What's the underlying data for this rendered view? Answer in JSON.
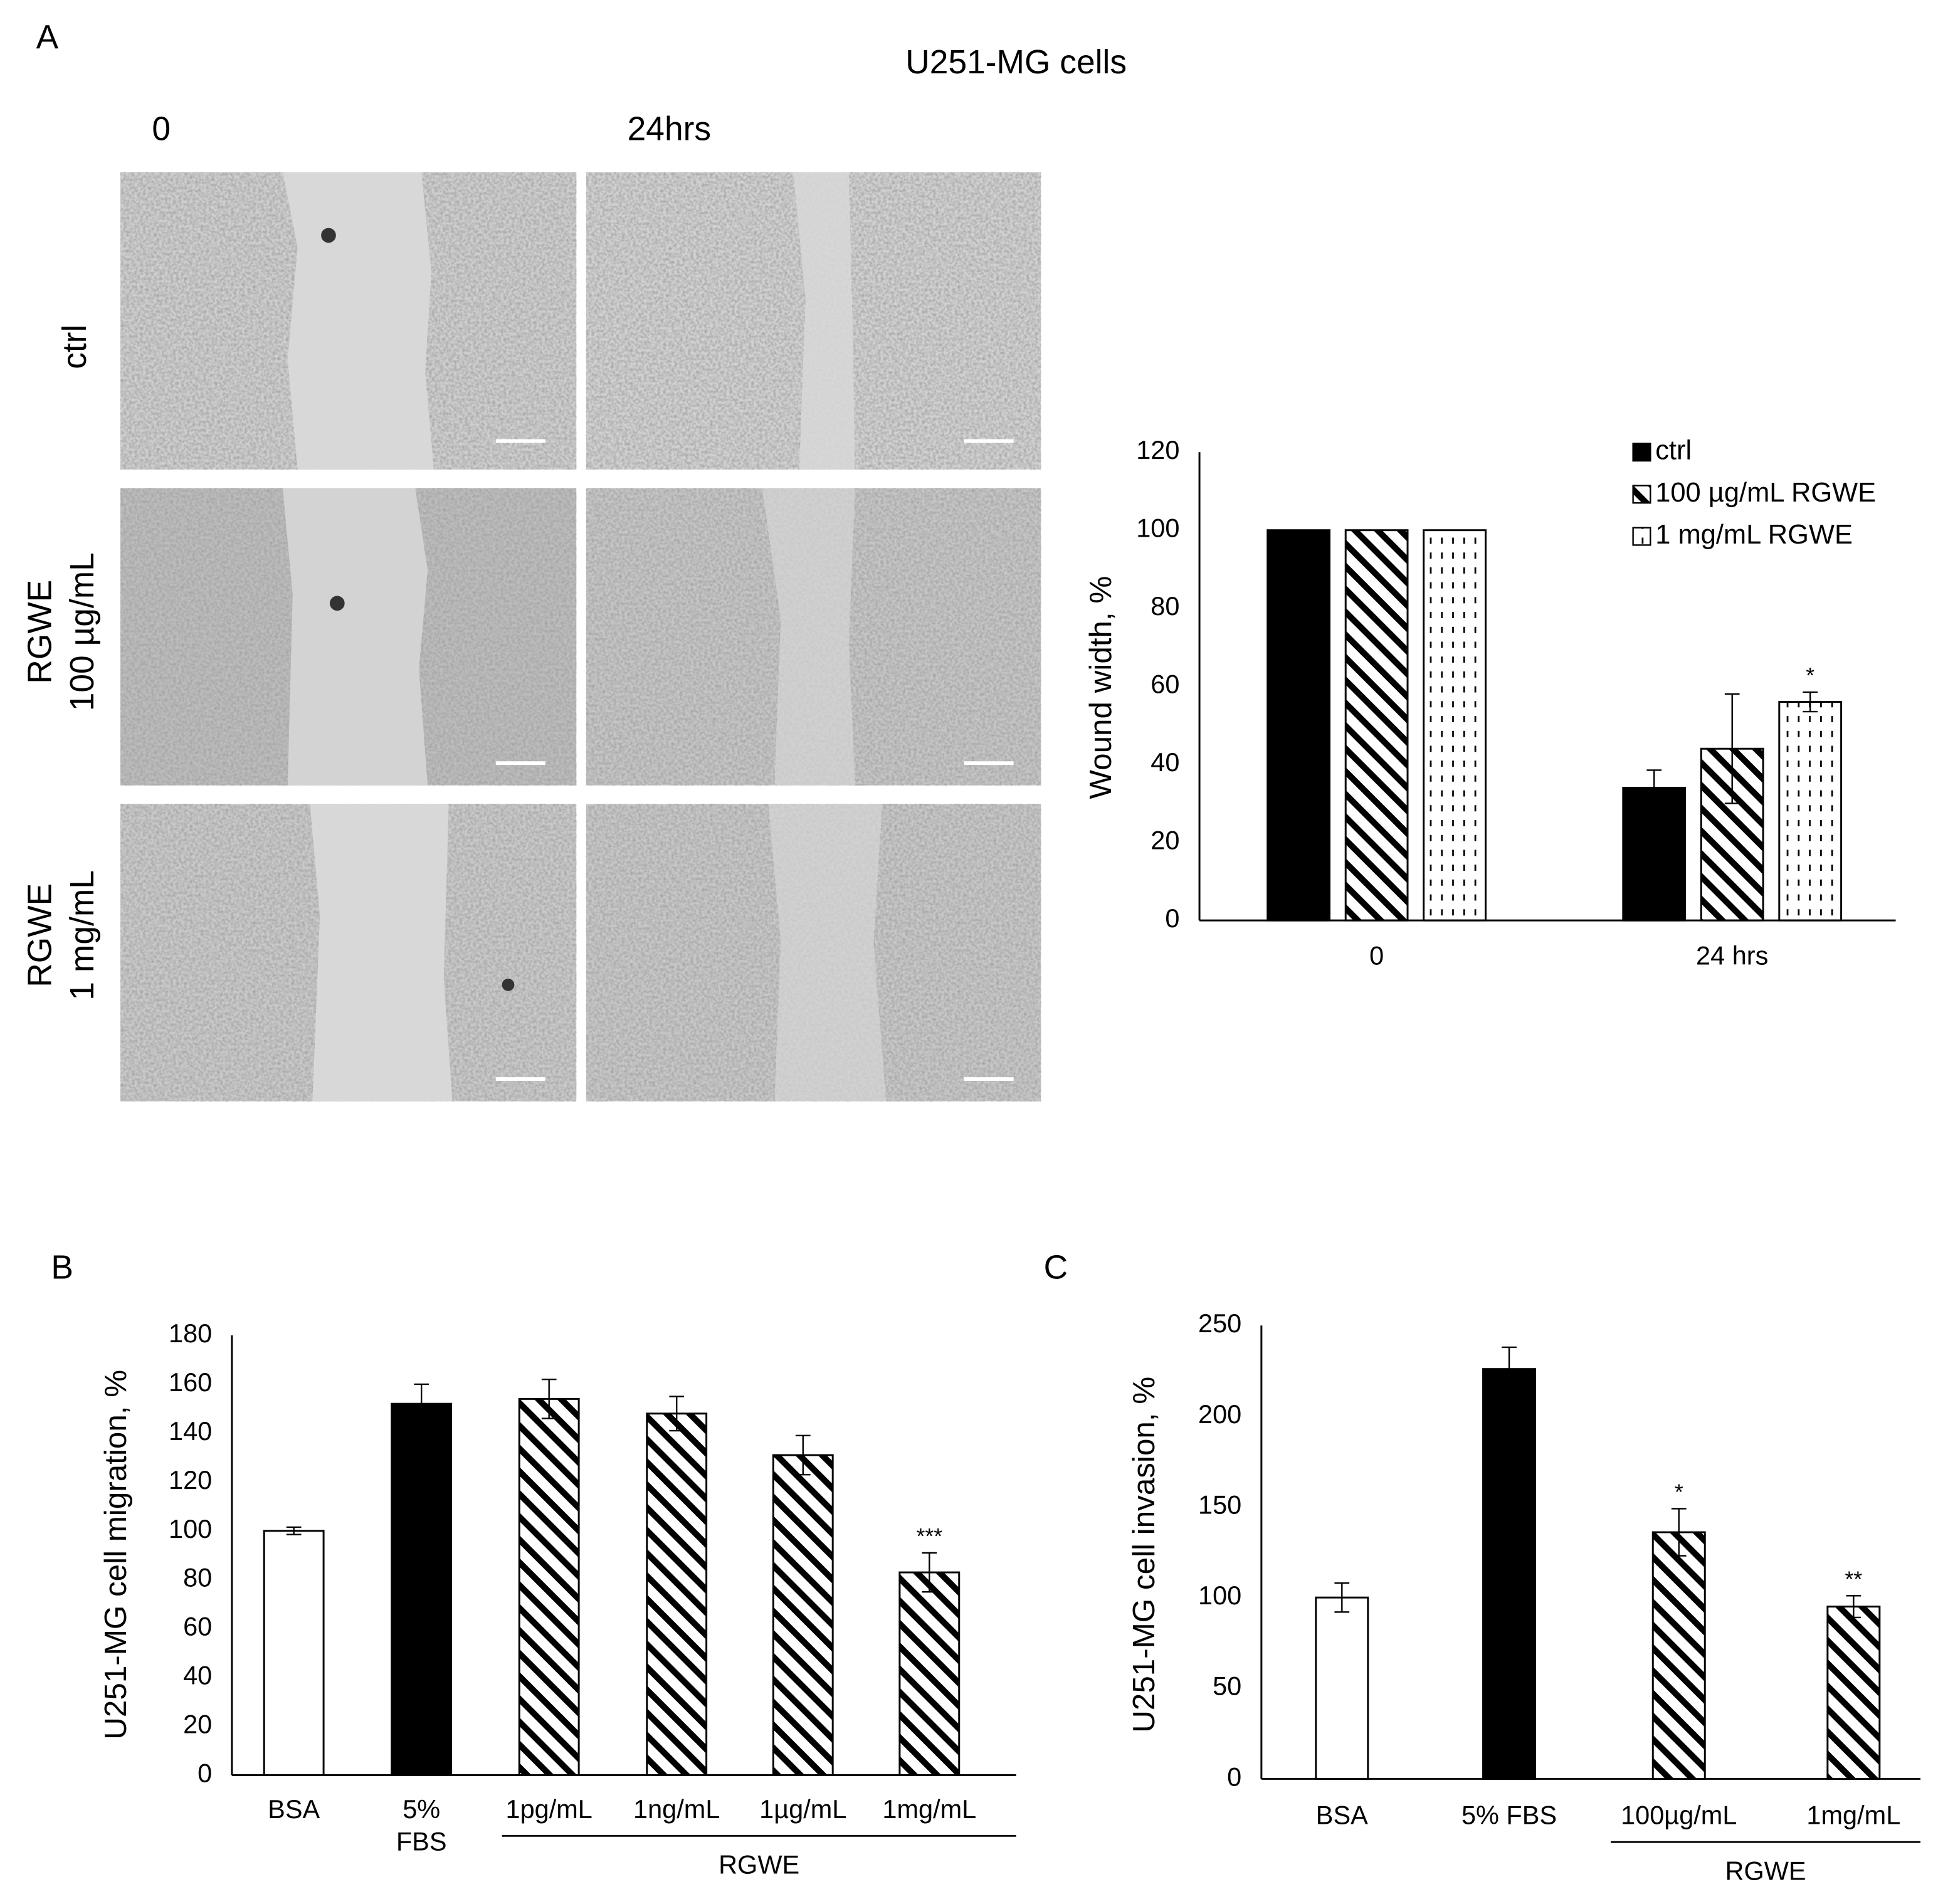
{
  "figure": {
    "panel_labels": [
      "A",
      "B",
      "C"
    ],
    "title": "U251-MG cells",
    "time_labels": [
      "0",
      "24hrs"
    ],
    "row_labels": [
      [
        "ctrl"
      ],
      [
        "RGWE",
        "100 µg/mL"
      ],
      [
        "RGWE",
        "1 mg/mL"
      ]
    ]
  },
  "chart_data": [
    {
      "type": "bar",
      "ylabel": "Wound width, %",
      "categories": [
        "0",
        "24 hrs"
      ],
      "series": [
        {
          "name": "ctrl",
          "color": "#000000",
          "pattern": "solid",
          "values": [
            100,
            34
          ],
          "errors": [
            0,
            4.5
          ],
          "significance": [
            null,
            null
          ]
        },
        {
          "name": "100 µg/mL RGWE",
          "color": "#000000",
          "pattern": "diagonal",
          "values": [
            100,
            44
          ],
          "errors": [
            0,
            14
          ],
          "significance": [
            null,
            null
          ]
        },
        {
          "name": "1 mg/mL RGWE",
          "color": "#000000",
          "pattern": "dots",
          "values": [
            100,
            56
          ],
          "errors": [
            0,
            2.5
          ],
          "significance": [
            null,
            "*"
          ]
        }
      ],
      "ylim": [
        0,
        120
      ],
      "yticks": [
        0,
        20,
        40,
        60,
        80,
        100,
        120
      ],
      "grid": false,
      "legend": "top-right"
    },
    {
      "type": "bar",
      "ylabel": "U251-MG cell migration, %",
      "categories": [
        "BSA",
        "5%\nFBS",
        "1pg/mL",
        "1ng/mL",
        "1µg/mL",
        "1mg/mL"
      ],
      "values": [
        100,
        152,
        154,
        148,
        131,
        83
      ],
      "errors": [
        1.5,
        8,
        8,
        7,
        8,
        8
      ],
      "significance": [
        null,
        null,
        null,
        null,
        null,
        "***"
      ],
      "patterns": [
        "open",
        "solid",
        "diagonal",
        "diagonal",
        "diagonal",
        "diagonal"
      ],
      "color": "#000000",
      "group": [
        null,
        null,
        "RGWE",
        null,
        null,
        null
      ],
      "ylim": [
        0,
        180
      ],
      "yticks": [
        0,
        20,
        40,
        60,
        80,
        100,
        120,
        140,
        160,
        180
      ],
      "grid": false
    },
    {
      "type": "bar",
      "ylabel": "U251-MG cell invasion, %",
      "categories": [
        "BSA",
        "5% FBS",
        "100µg/mL",
        "1mg/mL"
      ],
      "values": [
        100,
        226,
        136,
        95
      ],
      "errors": [
        8,
        12,
        13,
        6
      ],
      "significance": [
        null,
        null,
        "*",
        "**"
      ],
      "patterns": [
        "open",
        "solid",
        "diagonal",
        "diagonal"
      ],
      "color": "#000000",
      "group": [
        null,
        null,
        "RGWE",
        null
      ],
      "ylim": [
        0,
        250
      ],
      "yticks": [
        0,
        50,
        100,
        150,
        200,
        250
      ],
      "grid": false
    }
  ]
}
